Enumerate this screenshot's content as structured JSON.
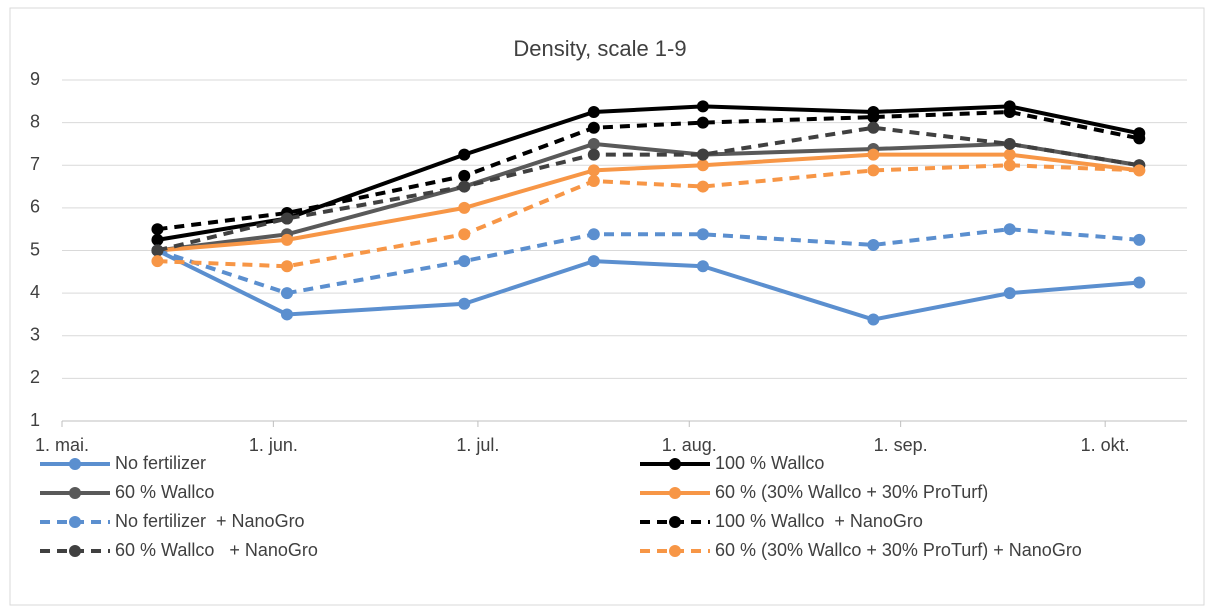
{
  "chart_data": {
    "type": "line",
    "title": "Density, scale 1-9",
    "x": [
      "05-15",
      "06-03",
      "06-29",
      "07-18",
      "08-03",
      "08-28",
      "09-17",
      "10-06"
    ],
    "xlim": [
      "05-01",
      "10-13"
    ],
    "xticks": [
      {
        "value": "05-01",
        "label": "1. mai."
      },
      {
        "value": "06-01",
        "label": "1. jun."
      },
      {
        "value": "07-01",
        "label": "1. jul."
      },
      {
        "value": "08-01",
        "label": "1. aug."
      },
      {
        "value": "09-01",
        "label": "1. sep."
      },
      {
        "value": "10-01",
        "label": "1. okt."
      }
    ],
    "ylim": [
      1,
      9
    ],
    "yticks": [
      1,
      2,
      3,
      4,
      5,
      6,
      7,
      8,
      9
    ],
    "grid": true,
    "legend": "bottom",
    "series": [
      {
        "name": "No fertilizer",
        "color": "#5b8fcf",
        "dash": false,
        "values": [
          5,
          3.5,
          3.75,
          4.75,
          4.63,
          3.38,
          4,
          4.25
        ]
      },
      {
        "name": "100 % Wallco",
        "color": "#000000",
        "dash": false,
        "values": [
          5.25,
          5.75,
          7.25,
          8.25,
          8.38,
          8.25,
          8.38,
          7.75
        ]
      },
      {
        "name": "60 % Wallco",
        "color": "#595959",
        "dash": false,
        "values": [
          5,
          5.38,
          6.5,
          7.5,
          7.25,
          7.38,
          7.5,
          7
        ]
      },
      {
        "name": "60 % (30% Wallco + 30% ProTurf)",
        "color": "#f79646",
        "dash": false,
        "values": [
          5,
          5.25,
          6,
          6.88,
          7,
          7.25,
          7.25,
          6.88
        ]
      },
      {
        "name": "No fertilizer  + NanoGro",
        "color": "#5b8fcf",
        "dash": true,
        "values": [
          5,
          4,
          4.75,
          5.38,
          5.38,
          5.13,
          5.5,
          5.25
        ]
      },
      {
        "name": "100 % Wallco  + NanoGro",
        "color": "#000000",
        "dash": true,
        "values": [
          5.5,
          5.88,
          6.75,
          7.88,
          8,
          8.13,
          8.25,
          7.63
        ]
      },
      {
        "name": "60 % Wallco   + NanoGro",
        "color": "#404040",
        "dash": true,
        "values": [
          5,
          5.75,
          6.5,
          7.25,
          7.25,
          7.88,
          7.5,
          7
        ]
      },
      {
        "name": "60 % (30% Wallco + 30% ProTurf) + NanoGro",
        "color": "#f79646",
        "dash": true,
        "values": [
          4.75,
          4.63,
          5.38,
          6.63,
          6.5,
          6.88,
          7,
          6.88
        ]
      }
    ]
  }
}
